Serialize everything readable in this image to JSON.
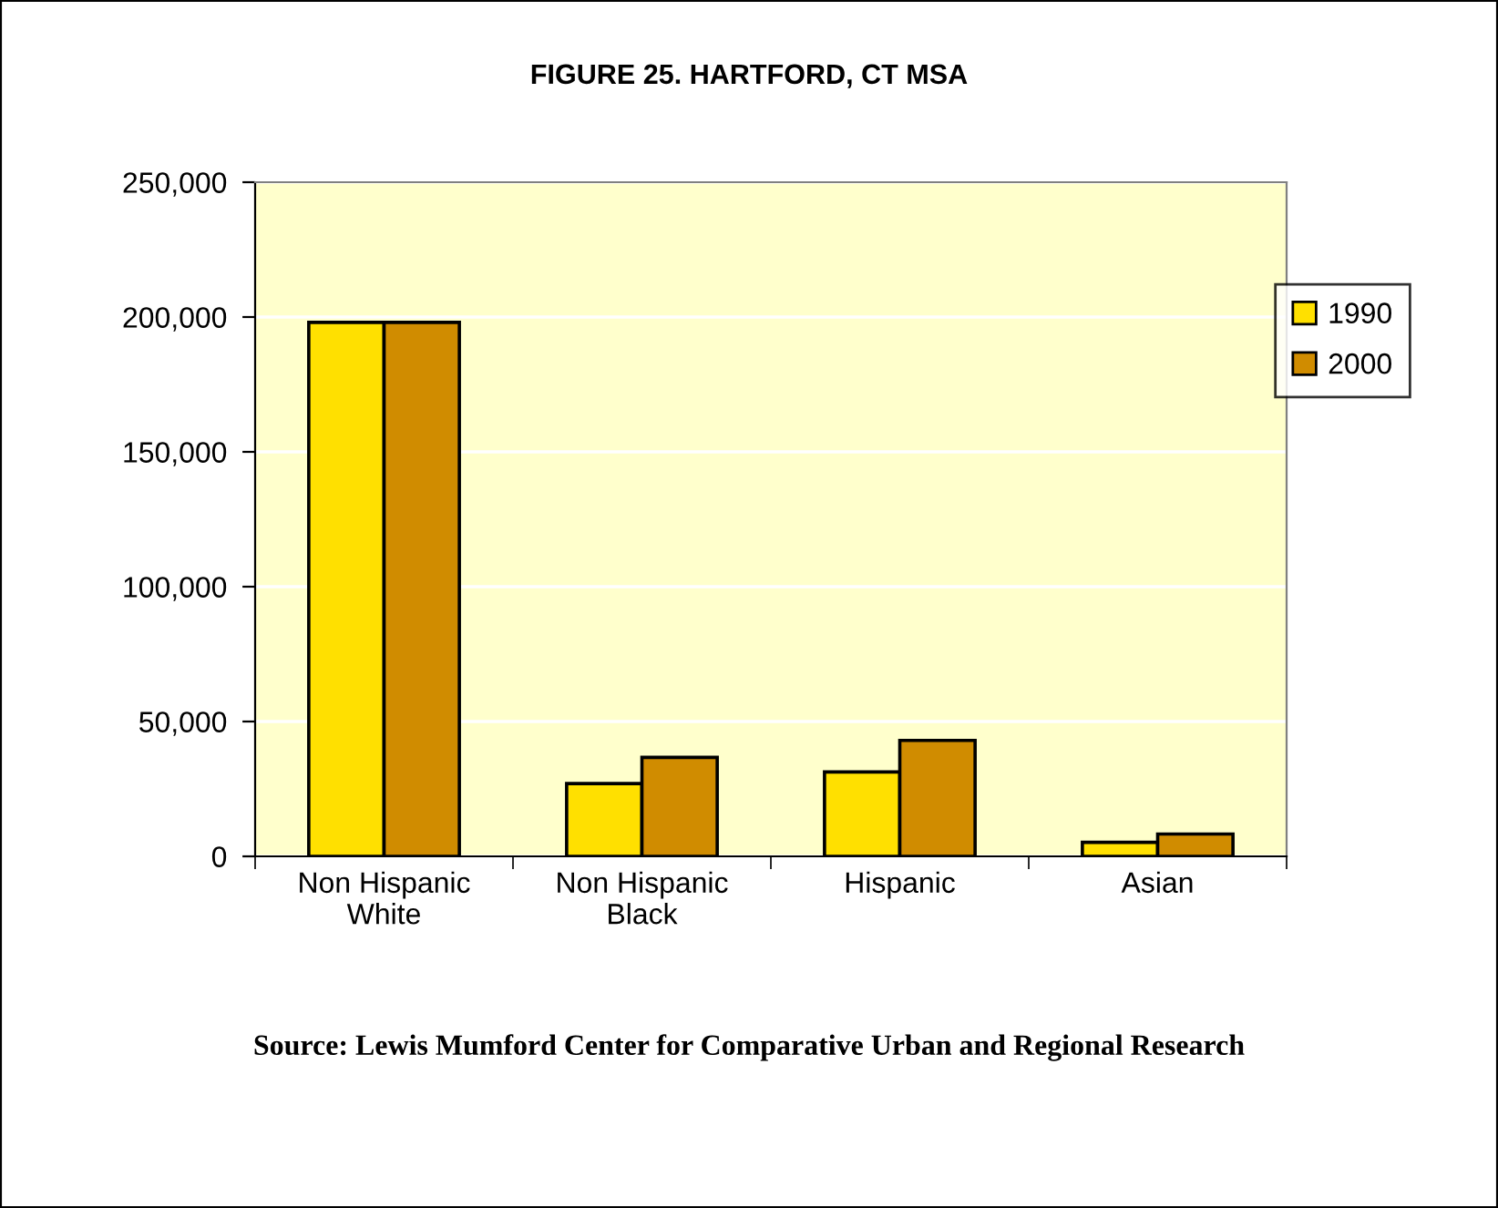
{
  "chart_data": {
    "type": "bar",
    "title": "FIGURE 25. HARTFORD, CT MSA",
    "categories": [
      "Non Hispanic\nWhite",
      "Non Hispanic\nBlack",
      "Hispanic",
      "Asian"
    ],
    "series": [
      {
        "name": "1990",
        "color": "#ffe000",
        "values": [
          198000,
          27000,
          31300,
          5200
        ]
      },
      {
        "name": "2000",
        "color": "#d08c00",
        "values": [
          198000,
          36700,
          43000,
          8300
        ]
      }
    ],
    "ylim": [
      0,
      250000
    ],
    "yticks": [
      {
        "value": 0,
        "label": "0"
      },
      {
        "value": 50000,
        "label": "50,000"
      },
      {
        "value": 100000,
        "label": "100,000"
      },
      {
        "value": 150000,
        "label": "150,000"
      },
      {
        "value": 200000,
        "label": "200,000"
      },
      {
        "value": 250000,
        "label": "250,000"
      }
    ],
    "grid": "y",
    "legend": "right",
    "annotations": [
      "Source: Lewis Mumford Center for Comparative Urban and Regional Research"
    ]
  }
}
